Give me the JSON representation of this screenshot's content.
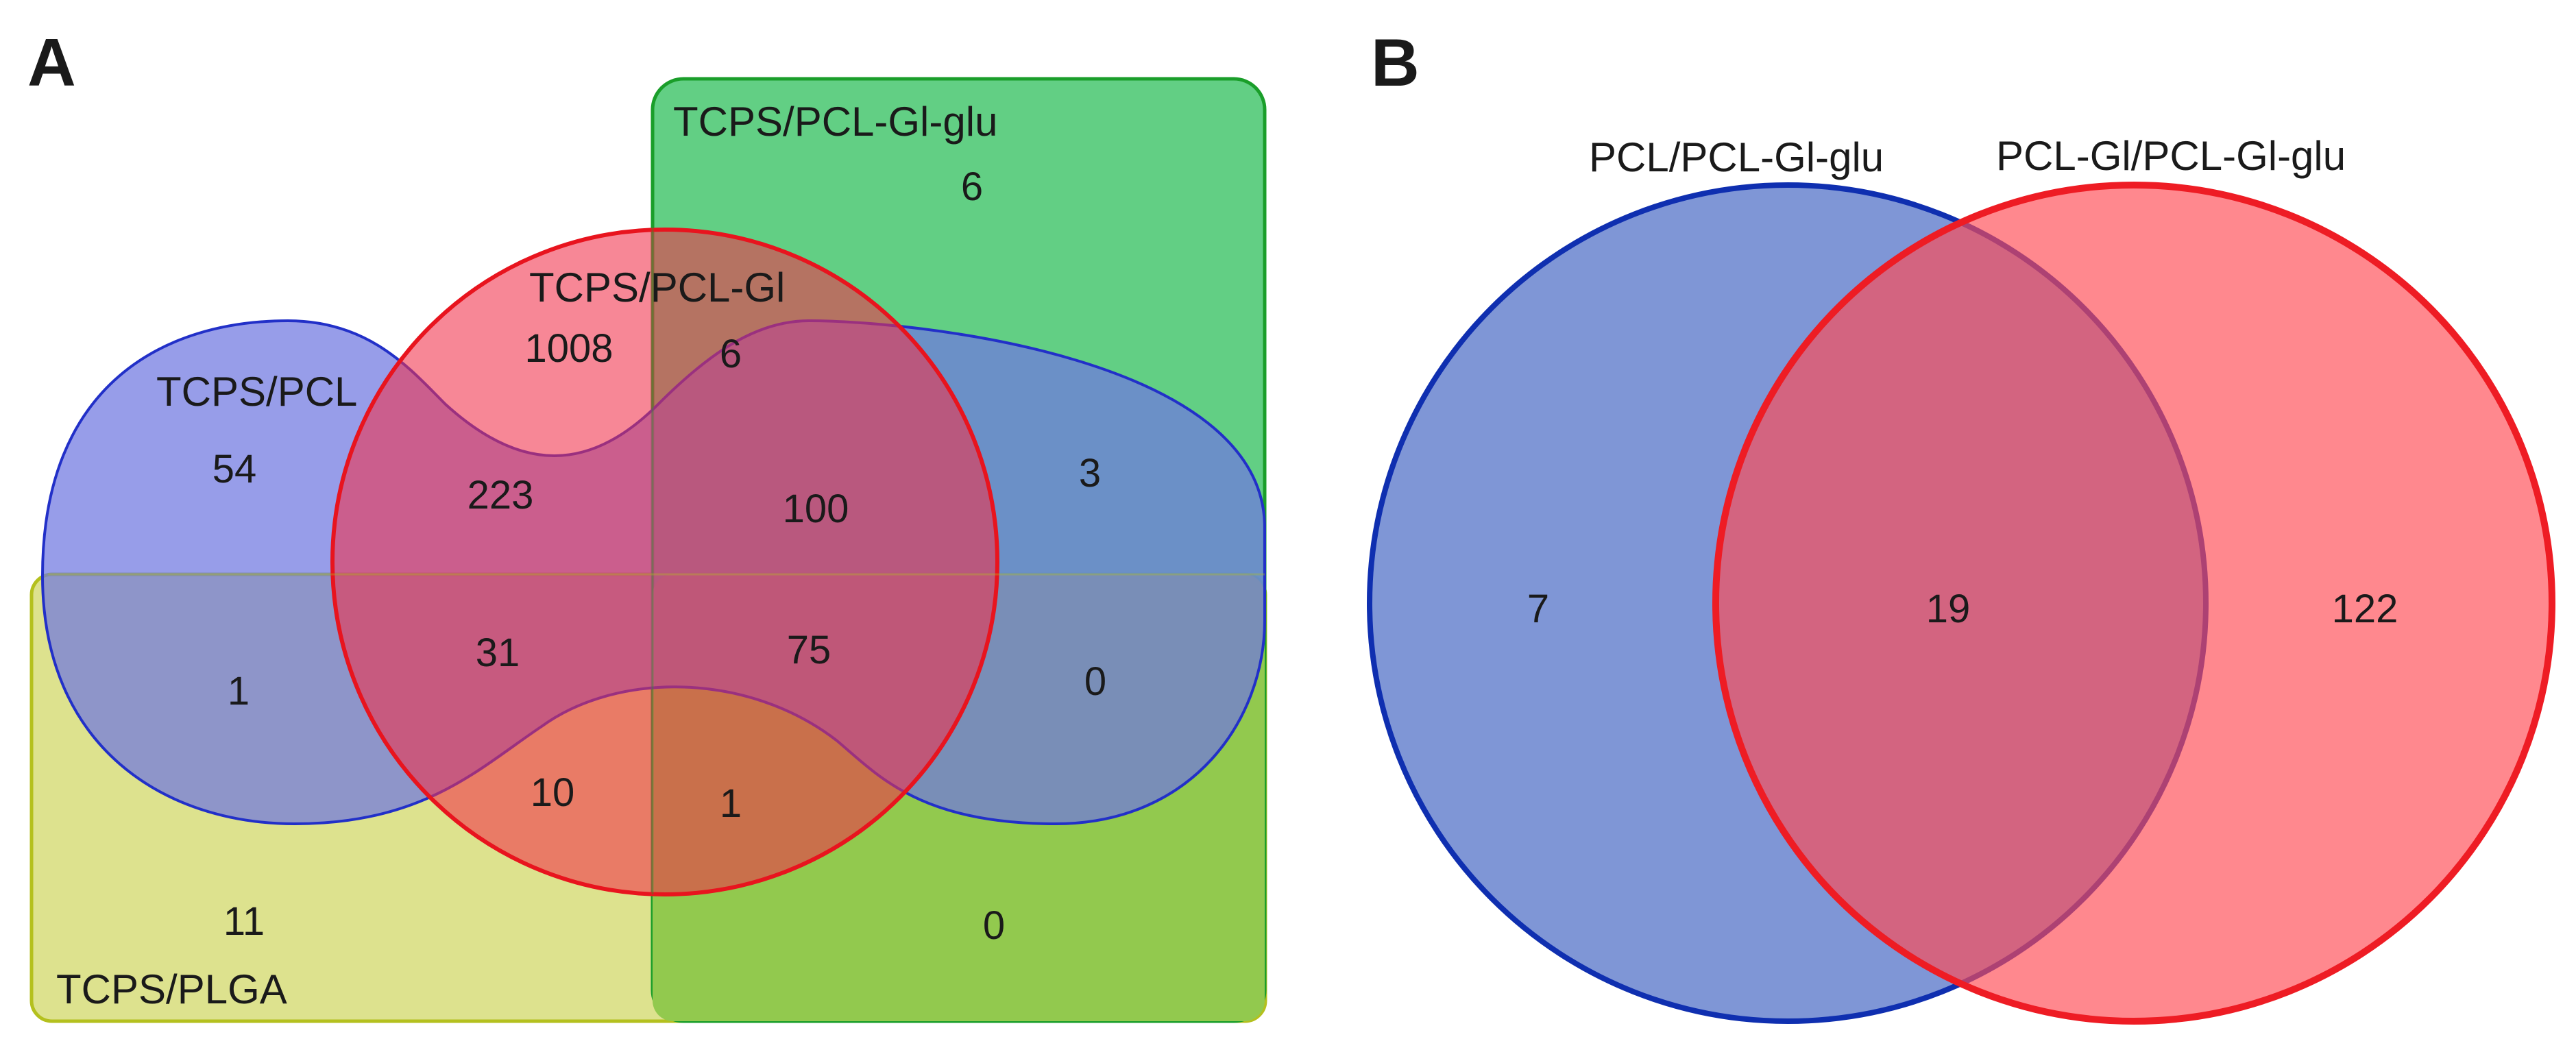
{
  "panel_a": {
    "label": "A",
    "sets": {
      "pcl": "TCPS/PCL",
      "pcl_gl": "TCPS/PCL-Gl",
      "pcl_gl_glu": "TCPS/PCL-Gl-glu",
      "plga": "TCPS/PLGA"
    },
    "regions": [
      {
        "id": "pcl-only",
        "value": "54"
      },
      {
        "id": "pcl-gl-only",
        "value": "1008"
      },
      {
        "id": "pcl-gl-glu-only",
        "value": "6"
      },
      {
        "id": "plga-only",
        "value": "11"
      },
      {
        "id": "pcl-gl-and-glu",
        "value": "6"
      },
      {
        "id": "pcl-and-gl",
        "value": "223"
      },
      {
        "id": "pcl-gl-glu-triple",
        "value": "100"
      },
      {
        "id": "pcl-and-glu",
        "value": "3"
      },
      {
        "id": "pcl-and-plga",
        "value": "1"
      },
      {
        "id": "pcl-gl-plga-triple",
        "value": "31"
      },
      {
        "id": "all-four",
        "value": "75"
      },
      {
        "id": "pcl-glu-plga-triple",
        "value": "0"
      },
      {
        "id": "gl-and-plga",
        "value": "10"
      },
      {
        "id": "gl-glu-plga-triple",
        "value": "1"
      },
      {
        "id": "glu-and-plga",
        "value": "0"
      }
    ],
    "colors": {
      "pcl_fill": "#8a8fe6",
      "pcl_stroke": "#2230c8",
      "gl_fill": "#f2304a",
      "gl_stroke": "#e8141e",
      "glu_fill": "#4cc873",
      "glu_stroke": "#1a9e2a",
      "plga_fill": "#dde28e",
      "plga_stroke": "#b4c01e"
    }
  },
  "panel_b": {
    "label": "B",
    "sets": {
      "left": "PCL/PCL-Gl-glu",
      "right": "PCL-Gl/PCL-Gl-glu"
    },
    "regions": [
      {
        "id": "left-only",
        "value": "7"
      },
      {
        "id": "intersection",
        "value": "19"
      },
      {
        "id": "right-only",
        "value": "122"
      }
    ],
    "colors": {
      "left_fill": "#7f96d6",
      "left_stroke": "#0f2fb0",
      "right_fill": "#ff7c80",
      "right_stroke": "#ee1c24"
    }
  }
}
